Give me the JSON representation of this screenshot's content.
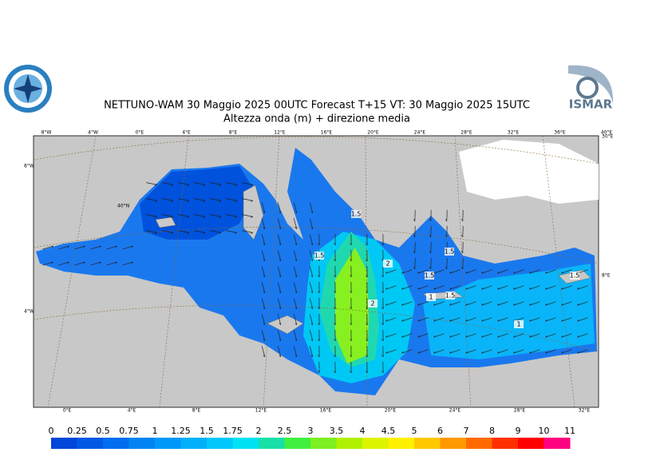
{
  "header": {
    "title": "NETTUNO-WAM 30   Maggio  2025 00UTC Forecast T+15 VT: 30   Maggio  2025 15UTC",
    "subtitle": "Altezza onda (m) + direzione media",
    "logo_right": "ISMAR"
  },
  "map": {
    "top_labels": [
      "8°W",
      "4°W",
      "0°E",
      "4°E",
      "8°E",
      "12°E",
      "16°E",
      "20°E",
      "24°E",
      "28°E",
      "32°E",
      "36°E",
      "40°E"
    ],
    "bottom_labels": [
      "0°E",
      "4°E",
      "8°E",
      "12°E",
      "16°E",
      "20°E",
      "24°E",
      "28°E",
      "32°E"
    ],
    "left_labels": [
      "8°W",
      "4°W"
    ],
    "right_labels": [
      "30°E",
      "8°E"
    ],
    "inner_labels": [
      "40°N"
    ],
    "contour_labels": [
      "1.5",
      "1.5",
      "2",
      "1.5",
      "1.5",
      "2",
      "1.5",
      "1",
      "1",
      "1.5"
    ]
  },
  "legend": {
    "levels": [
      0,
      0.25,
      0.5,
      0.75,
      1,
      1.25,
      1.5,
      1.75,
      2,
      2.5,
      3,
      3.5,
      4,
      4.5,
      5,
      6,
      7,
      8,
      9,
      10,
      11
    ],
    "colors": [
      "#0046d8",
      "#005ae4",
      "#006eee",
      "#0084f4",
      "#0098f8",
      "#00b0fa",
      "#00c8fa",
      "#00e2f4",
      "#18e0a8",
      "#40f040",
      "#7cf020",
      "#b0f000",
      "#dcf400",
      "#fff000",
      "#ffc800",
      "#ff9a00",
      "#ff6a00",
      "#ff3000",
      "#ff0000",
      "#ff0080"
    ]
  }
}
